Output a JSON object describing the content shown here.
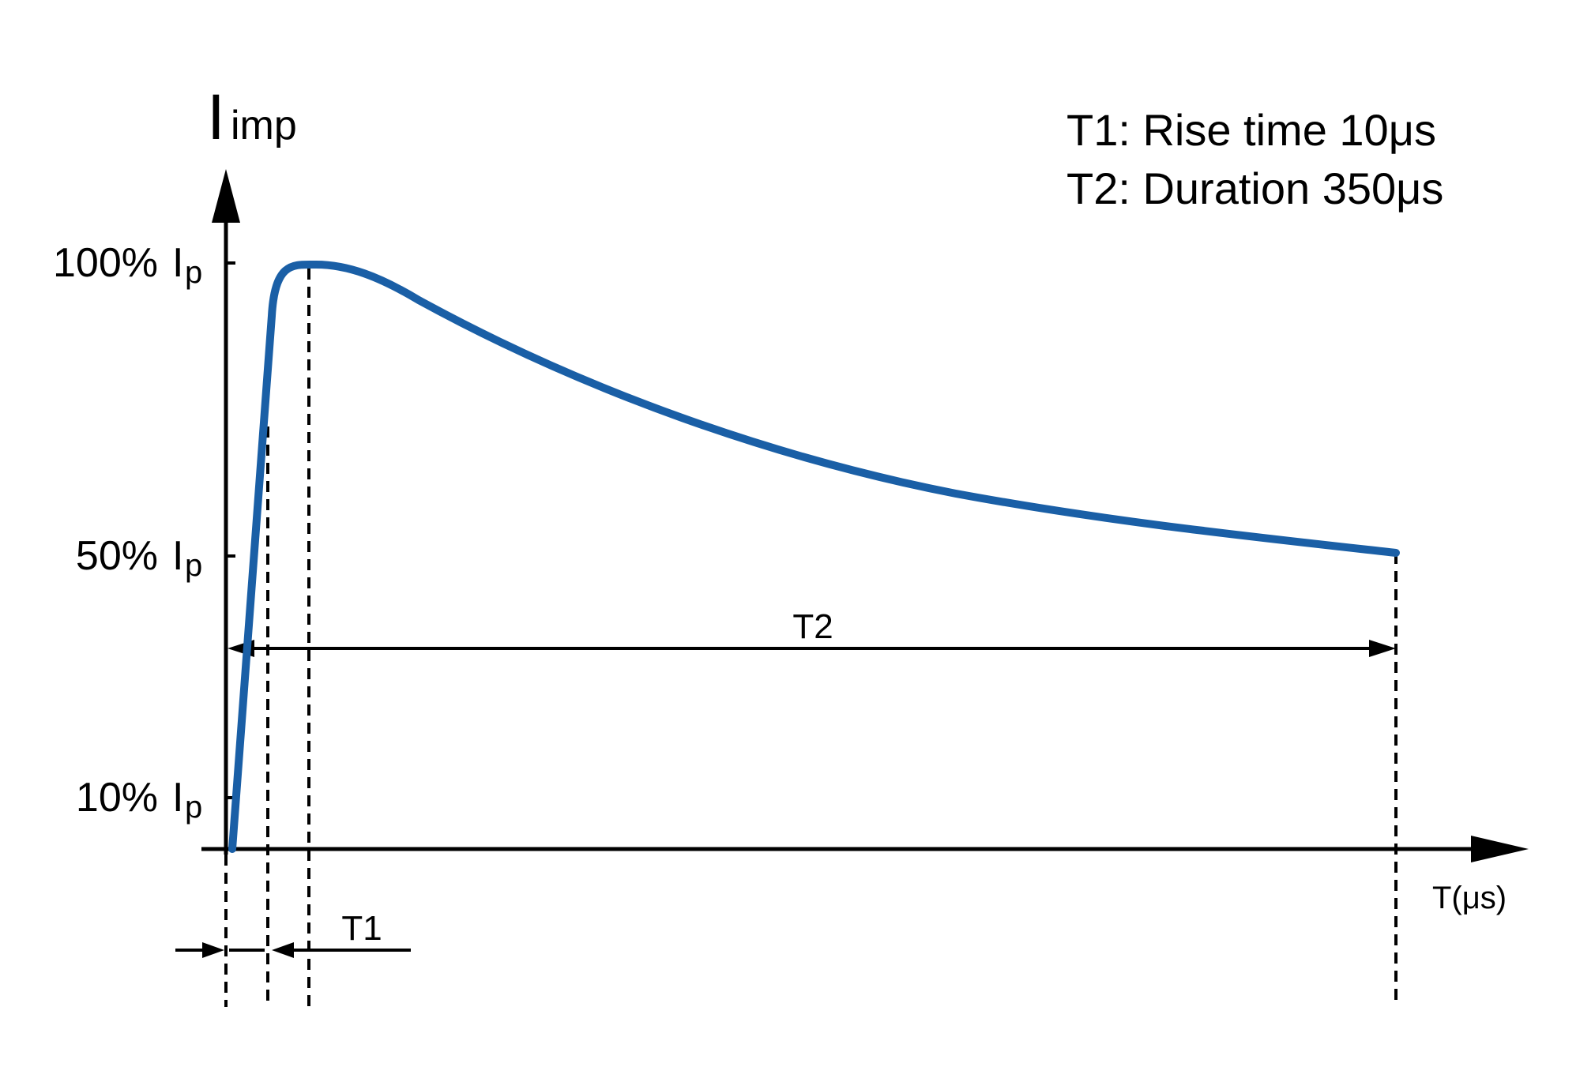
{
  "diagram": {
    "y_axis_label": {
      "main": "I",
      "subscript": "imp"
    },
    "x_axis_label": "T(μs)",
    "legend": {
      "line1": "T1: Rise time 10μs",
      "line2": "T2: Duration 350μs"
    },
    "levels": [
      {
        "percent": "100%",
        "symbol": "I",
        "subscript": "p"
      },
      {
        "percent": "50%",
        "symbol": "I",
        "subscript": "p"
      },
      {
        "percent": "10%",
        "symbol": "I",
        "subscript": "p"
      }
    ],
    "interval_labels": {
      "t1": "T1",
      "t2": "T2"
    },
    "colors": {
      "waveform": "#1a5fa6",
      "axes": "#000000"
    }
  }
}
